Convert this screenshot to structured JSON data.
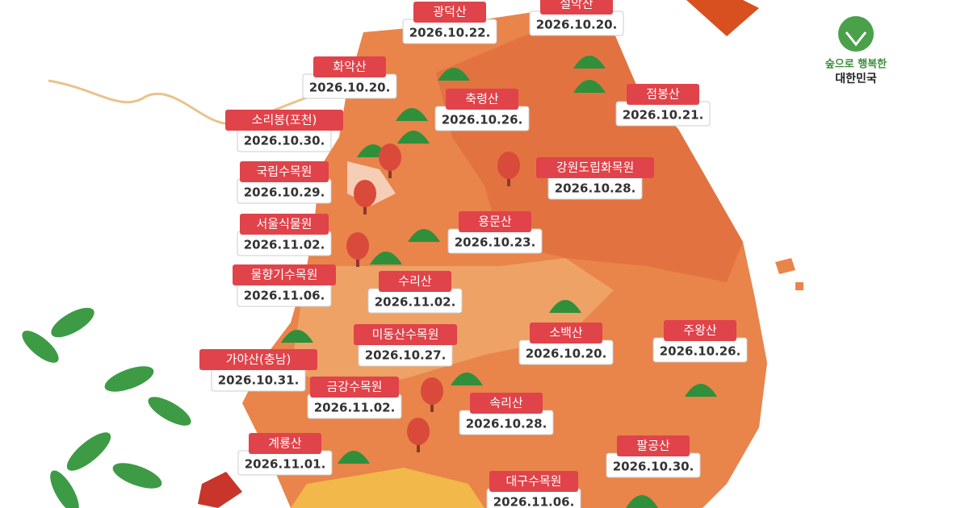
{
  "logo": {
    "line1": "숲으로 행복한",
    "line2": "대한민국"
  },
  "places": [
    {
      "name": "광덕산",
      "date": "2026.10.22."
    },
    {
      "name": "설악산",
      "date": "2026.10.20."
    },
    {
      "name": "화악산",
      "date": "2026.10.20."
    },
    {
      "name": "축령산",
      "date": "2026.10.26."
    },
    {
      "name": "점봉산",
      "date": "2026.10.21."
    },
    {
      "name": "소리봉(포천)",
      "date": "2026.10.30."
    },
    {
      "name": "국립수목원",
      "date": "2026.10.29."
    },
    {
      "name": "강원도립화목원",
      "date": "2026.10.28."
    },
    {
      "name": "서울식물원",
      "date": "2026.11.02."
    },
    {
      "name": "용문산",
      "date": "2026.10.23."
    },
    {
      "name": "물향기수목원",
      "date": "2026.11.06."
    },
    {
      "name": "수리산",
      "date": "2026.11.02."
    },
    {
      "name": "미동산수목원",
      "date": "2026.10.27."
    },
    {
      "name": "소백산",
      "date": "2026.10.20."
    },
    {
      "name": "주왕산",
      "date": "2026.10.26."
    },
    {
      "name": "가야산(충남)",
      "date": "2026.10.31."
    },
    {
      "name": "금강수목원",
      "date": "2026.11.02."
    },
    {
      "name": "속리산",
      "date": "2026.10.28."
    },
    {
      "name": "계룡산",
      "date": "2026.11.01."
    },
    {
      "name": "팔공산",
      "date": "2026.10.30."
    },
    {
      "name": "대구수목원",
      "date": "2026.11.06."
    }
  ]
}
